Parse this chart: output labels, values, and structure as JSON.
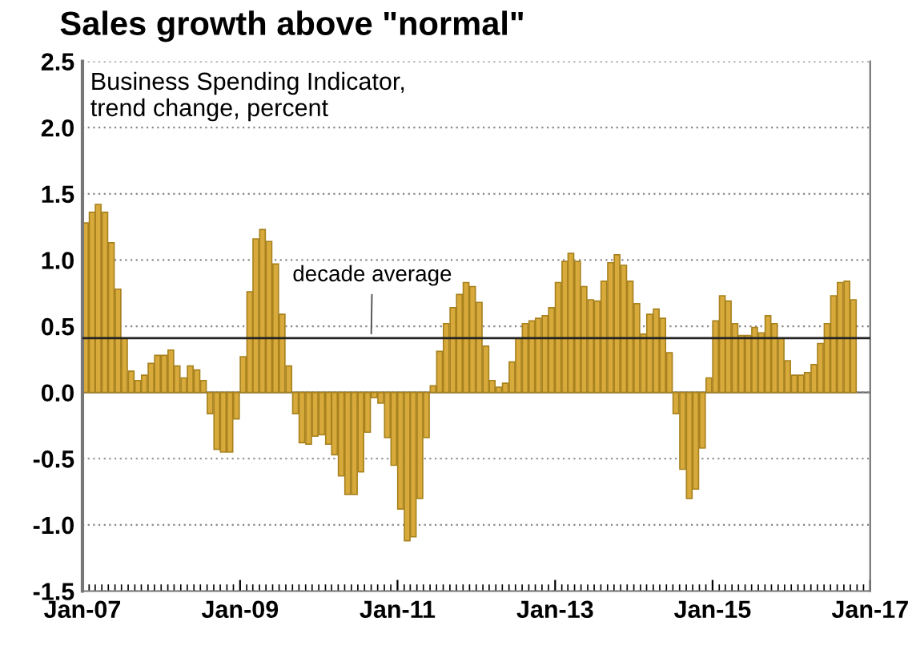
{
  "chart_data": {
    "type": "bar",
    "title": "Sales growth above \"normal\"",
    "subtitle": "Business Spending Indicator,\ntrend change, percent",
    "x": [
      "2007-01",
      "2007-02",
      "2007-03",
      "2007-04",
      "2007-05",
      "2007-06",
      "2007-07",
      "2007-08",
      "2007-09",
      "2007-10",
      "2007-11",
      "2007-12",
      "2008-01",
      "2008-02",
      "2008-03",
      "2008-04",
      "2008-05",
      "2008-06",
      "2008-07",
      "2008-08",
      "2008-09",
      "2008-10",
      "2008-11",
      "2008-12",
      "2009-01",
      "2009-02",
      "2009-03",
      "2009-04",
      "2009-05",
      "2009-06",
      "2009-07",
      "2009-08",
      "2009-09",
      "2009-10",
      "2009-11",
      "2009-12",
      "2010-01",
      "2010-02",
      "2010-03",
      "2010-04",
      "2010-05",
      "2010-06",
      "2010-07",
      "2010-08",
      "2010-09",
      "2010-10",
      "2010-11",
      "2010-12",
      "2011-01",
      "2011-02",
      "2011-03",
      "2011-04",
      "2011-05",
      "2011-06",
      "2011-07",
      "2011-08",
      "2011-09",
      "2011-10",
      "2011-11",
      "2011-12",
      "2012-01",
      "2012-02",
      "2012-03",
      "2012-04",
      "2012-05",
      "2012-06",
      "2012-07",
      "2012-08",
      "2012-09",
      "2012-10",
      "2012-11",
      "2012-12",
      "2013-01",
      "2013-02",
      "2013-03",
      "2013-04",
      "2013-05",
      "2013-06",
      "2013-07",
      "2013-08",
      "2013-09",
      "2013-10",
      "2013-11",
      "2013-12",
      "2014-01",
      "2014-02",
      "2014-03",
      "2014-04",
      "2014-05",
      "2014-06",
      "2014-07",
      "2014-08",
      "2014-09",
      "2014-10",
      "2014-11",
      "2014-12",
      "2015-01",
      "2015-02",
      "2015-03",
      "2015-04",
      "2015-05",
      "2015-06",
      "2015-07",
      "2015-08",
      "2015-09",
      "2015-10",
      "2015-11",
      "2015-12",
      "2016-01",
      "2016-02",
      "2016-03",
      "2016-04",
      "2016-05",
      "2016-06",
      "2016-07",
      "2016-08",
      "2016-09",
      "2016-10"
    ],
    "values": [
      1.28,
      1.36,
      1.42,
      1.36,
      1.13,
      0.78,
      0.41,
      0.16,
      0.09,
      0.13,
      0.22,
      0.28,
      0.28,
      0.32,
      0.2,
      0.11,
      0.2,
      0.17,
      0.09,
      -0.16,
      -0.43,
      -0.45,
      -0.45,
      -0.2,
      0.27,
      0.76,
      1.16,
      1.23,
      1.14,
      0.97,
      0.59,
      0.2,
      -0.16,
      -0.38,
      -0.39,
      -0.33,
      -0.32,
      -0.39,
      -0.47,
      -0.63,
      -0.77,
      -0.77,
      -0.6,
      -0.3,
      -0.04,
      -0.08,
      -0.34,
      -0.55,
      -0.88,
      -1.12,
      -1.09,
      -0.8,
      -0.34,
      0.05,
      0.31,
      0.52,
      0.64,
      0.74,
      0.83,
      0.8,
      0.68,
      0.35,
      0.09,
      0.04,
      0.07,
      0.23,
      0.41,
      0.52,
      0.54,
      0.56,
      0.58,
      0.64,
      0.83,
      0.99,
      1.05,
      0.99,
      0.8,
      0.7,
      0.69,
      0.84,
      0.98,
      1.04,
      0.96,
      0.84,
      0.67,
      0.44,
      0.59,
      0.63,
      0.56,
      0.3,
      -0.16,
      -0.58,
      -0.8,
      -0.73,
      -0.42,
      0.11,
      0.54,
      0.73,
      0.69,
      0.52,
      0.43,
      0.43,
      0.49,
      0.45,
      0.58,
      0.52,
      0.41,
      0.24,
      0.13,
      0.13,
      0.15,
      0.21,
      0.37,
      0.52,
      0.73,
      0.83,
      0.84,
      0.7
    ],
    "color": "#d8aa3c",
    "xlim": [
      "2007-01",
      "2017-01"
    ],
    "xticks": [
      {
        "value": "2007-01",
        "label": "Jan-07"
      },
      {
        "value": "2009-01",
        "label": "Jan-09"
      },
      {
        "value": "2011-01",
        "label": "Jan-11"
      },
      {
        "value": "2013-01",
        "label": "Jan-13"
      },
      {
        "value": "2015-01",
        "label": "Jan-15"
      },
      {
        "value": "2017-01",
        "label": "Jan-17"
      }
    ],
    "ylim": [
      -1.5,
      2.5
    ],
    "yticks": [
      {
        "value": -1.5,
        "label": "-1.5"
      },
      {
        "value": -1,
        "label": "-1.0"
      },
      {
        "value": -0.5,
        "label": "-0.5"
      },
      {
        "value": 0,
        "label": "0.0"
      },
      {
        "value": 0.5,
        "label": "0.5"
      },
      {
        "value": 1,
        "label": "1.0"
      },
      {
        "value": 1.5,
        "label": "1.5"
      },
      {
        "value": 2,
        "label": "2.0"
      },
      {
        "value": 2.5,
        "label": "2.5"
      }
    ],
    "ref_lines": [
      {
        "axis": "y",
        "value": 0.41,
        "label": "decade average",
        "color": "#222222"
      }
    ],
    "grid": "y"
  }
}
